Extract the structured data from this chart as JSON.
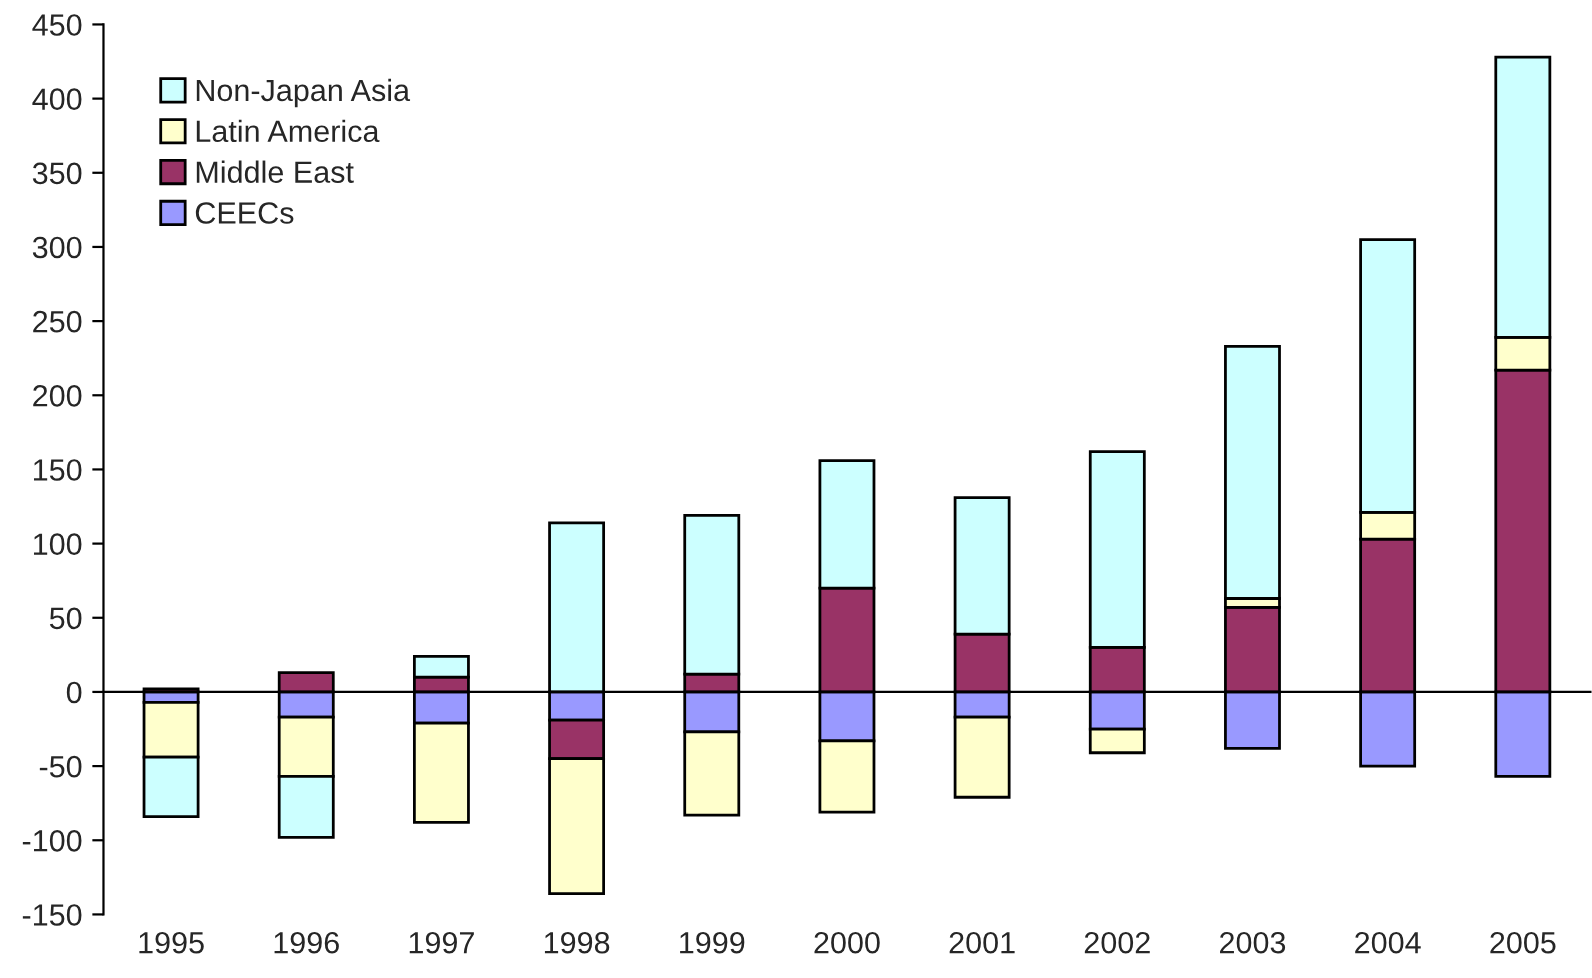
{
  "chart_data": {
    "type": "bar",
    "stacked": true,
    "categories": [
      "1995",
      "1996",
      "1997",
      "1998",
      "1999",
      "2000",
      "2001",
      "2002",
      "2003",
      "2004",
      "2005"
    ],
    "series": [
      {
        "name": "CEECs",
        "color": "#9999ff",
        "values": [
          -7,
          -17,
          -21,
          -19,
          -27,
          -33,
          -17,
          -25,
          -38,
          -50,
          -57
        ]
      },
      {
        "name": "Middle East",
        "color": "#993366",
        "values": [
          2,
          13,
          10,
          -26,
          12,
          70,
          39,
          30,
          57,
          103,
          217
        ]
      },
      {
        "name": "Latin America",
        "color": "#ffffcc",
        "values": [
          -37,
          -40,
          -67,
          -91,
          -56,
          -48,
          -54,
          -16,
          6,
          18,
          22
        ]
      },
      {
        "name": "Non-Japan Asia",
        "color": "#ccffff",
        "values": [
          -40,
          -41,
          14,
          114,
          107,
          86,
          92,
          132,
          170,
          184,
          189
        ]
      }
    ],
    "ylim": [
      -150,
      450
    ],
    "yticks": [
      -150,
      -100,
      -50,
      0,
      50,
      100,
      150,
      200,
      250,
      300,
      350,
      400,
      450
    ],
    "legend": "top left"
  }
}
